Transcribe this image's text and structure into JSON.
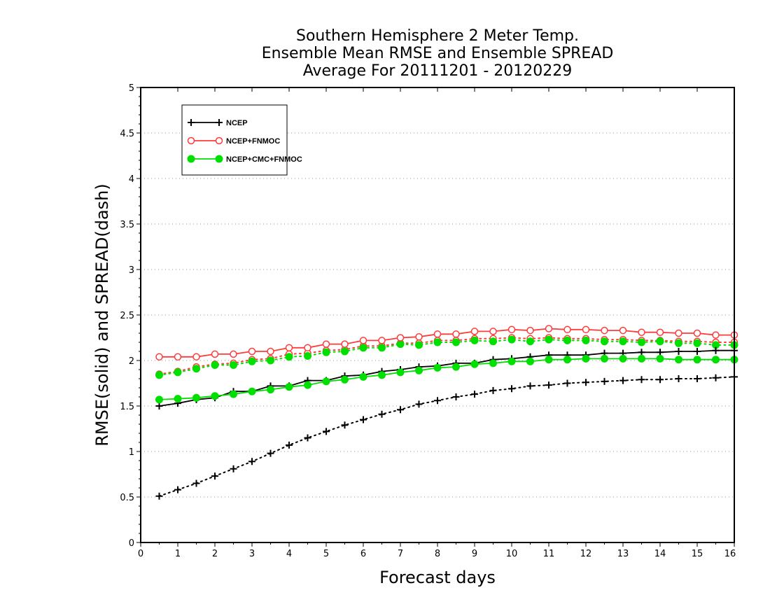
{
  "chart_data": {
    "type": "line",
    "title": [
      "Southern Hemisphere 2 Meter Temp.",
      "Ensemble Mean RMSE and Ensemble SPREAD",
      "Average For 20111201 - 20120229"
    ],
    "xlabel": "Forecast days",
    "ylabel": "RMSE(solid) and SPREAD(dash)",
    "xlim": [
      0,
      16
    ],
    "ylim": [
      0,
      5
    ],
    "xticks": [
      0,
      1,
      2,
      3,
      4,
      5,
      6,
      7,
      8,
      9,
      10,
      11,
      12,
      13,
      14,
      15,
      16
    ],
    "yticks": [
      0,
      0.5,
      1,
      1.5,
      2,
      2.5,
      3,
      3.5,
      4,
      4.5,
      5
    ],
    "grid": "horizontal-dotted",
    "legend_position": "top-left",
    "x": [
      0.5,
      1,
      1.5,
      2,
      2.5,
      3,
      3.5,
      4,
      4.5,
      5,
      5.5,
      6,
      6.5,
      7,
      7.5,
      8,
      8.5,
      9,
      9.5,
      10,
      10.5,
      11,
      11.5,
      12,
      12.5,
      13,
      13.5,
      14,
      14.5,
      15,
      15.5,
      16
    ],
    "series": [
      {
        "name": "NCEP",
        "color": "#000000",
        "marker": "plus",
        "rmse": [
          1.5,
          1.53,
          1.57,
          1.59,
          1.66,
          1.66,
          1.72,
          1.72,
          1.78,
          1.78,
          1.83,
          1.84,
          1.88,
          1.9,
          1.93,
          1.94,
          1.97,
          1.97,
          2.01,
          2.02,
          2.04,
          2.06,
          2.06,
          2.06,
          2.08,
          2.08,
          2.09,
          2.09,
          2.1,
          2.1,
          2.11,
          2.11
        ],
        "spread": [
          0.51,
          0.58,
          0.65,
          0.73,
          0.81,
          0.89,
          0.98,
          1.07,
          1.15,
          1.22,
          1.29,
          1.35,
          1.41,
          1.46,
          1.52,
          1.56,
          1.6,
          1.63,
          1.67,
          1.69,
          1.72,
          1.73,
          1.75,
          1.76,
          1.77,
          1.78,
          1.79,
          1.79,
          1.8,
          1.8,
          1.81,
          1.82
        ]
      },
      {
        "name": "NCEP+FNMOC",
        "color": "#ff3b3b",
        "marker": "open-circle",
        "rmse": [
          2.04,
          2.04,
          2.04,
          2.07,
          2.07,
          2.1,
          2.1,
          2.14,
          2.14,
          2.18,
          2.18,
          2.22,
          2.22,
          2.25,
          2.26,
          2.29,
          2.29,
          2.32,
          2.32,
          2.34,
          2.33,
          2.35,
          2.34,
          2.34,
          2.33,
          2.33,
          2.31,
          2.31,
          2.3,
          2.3,
          2.28,
          2.28
        ],
        "spread": [
          1.85,
          1.88,
          1.93,
          1.96,
          1.97,
          2.01,
          2.02,
          2.07,
          2.08,
          2.11,
          2.12,
          2.16,
          2.16,
          2.19,
          2.19,
          2.22,
          2.22,
          2.24,
          2.24,
          2.25,
          2.24,
          2.25,
          2.24,
          2.24,
          2.23,
          2.23,
          2.22,
          2.22,
          2.21,
          2.21,
          2.2,
          2.2
        ]
      },
      {
        "name": "NCEP+CMC+FNMOC",
        "color": "#00e000",
        "marker": "filled-circle",
        "rmse": [
          1.57,
          1.58,
          1.59,
          1.61,
          1.63,
          1.66,
          1.68,
          1.71,
          1.73,
          1.77,
          1.79,
          1.82,
          1.84,
          1.87,
          1.89,
          1.92,
          1.93,
          1.96,
          1.97,
          1.99,
          1.99,
          2.01,
          2.01,
          2.02,
          2.02,
          2.02,
          2.02,
          2.02,
          2.01,
          2.01,
          2.01,
          2.01
        ],
        "spread": [
          1.84,
          1.87,
          1.91,
          1.95,
          1.95,
          1.99,
          2.0,
          2.04,
          2.05,
          2.09,
          2.1,
          2.14,
          2.14,
          2.18,
          2.17,
          2.2,
          2.2,
          2.22,
          2.21,
          2.23,
          2.21,
          2.23,
          2.22,
          2.22,
          2.21,
          2.21,
          2.2,
          2.21,
          2.19,
          2.19,
          2.17,
          2.17
        ]
      }
    ]
  }
}
